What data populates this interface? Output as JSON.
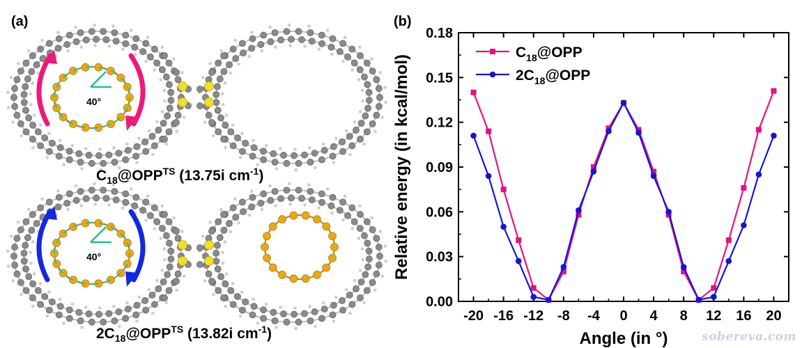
{
  "panel_a": {
    "letter": "(a)",
    "angle_label": "40°",
    "caption_top": {
      "prefix": "C",
      "sub": "18",
      "mid": "@OPP",
      "sup": "TS",
      "suffix": " (13.75i cm",
      "suffix_sup": "-1",
      "close": ")"
    },
    "caption_bottom": {
      "prefix": "2C",
      "sub": "18",
      "mid": "@OPP",
      "sup": "TS",
      "suffix": " (13.82i cm",
      "suffix_sup": "-1",
      "close": ")"
    },
    "colors": {
      "carbon_ring": "#e8a818",
      "carbon_ring_dark": "#b97d10",
      "opp_atom": "#8a8a8a",
      "sulfur": "#f2e028",
      "arrow_top": "#f0187a",
      "arrow_bottom": "#1428e0",
      "vector": "#1fbf99"
    }
  },
  "panel_b": {
    "letter": "(b)",
    "watermark": "sobereva.com"
  },
  "chart_data": {
    "type": "line",
    "xlabel": "Angle (in °)",
    "ylabel": "Relative energy (in kcal/mol)",
    "xlim": [
      -22,
      22
    ],
    "ylim": [
      0,
      0.18
    ],
    "xticks": [
      -20,
      -16,
      -12,
      -8,
      -4,
      0,
      4,
      8,
      12,
      16,
      20
    ],
    "yticks": [
      0.0,
      0.03,
      0.06,
      0.09,
      0.12,
      0.15,
      0.18
    ],
    "ytick_labels": [
      "0.00",
      "0.03",
      "0.06",
      "0.09",
      "0.12",
      "0.15",
      "0.18"
    ],
    "legend_position": "top-left",
    "series": [
      {
        "name_main": "C",
        "name_sub": "18",
        "name_rest": "@OPP",
        "color": "#e8107f",
        "marker": "square",
        "x": [
          -20,
          -18,
          -16,
          -14,
          -12,
          -10,
          -8,
          -6,
          -4,
          -2,
          0,
          2,
          4,
          6,
          8,
          10,
          12,
          14,
          16,
          18,
          20
        ],
        "y": [
          0.14,
          0.114,
          0.075,
          0.041,
          0.009,
          0.001,
          0.02,
          0.058,
          0.09,
          0.116,
          0.133,
          0.115,
          0.087,
          0.058,
          0.02,
          0.001,
          0.009,
          0.041,
          0.076,
          0.115,
          0.141
        ]
      },
      {
        "name_main": "2C",
        "name_sub": "18",
        "name_rest": "@OPP",
        "color": "#1414d8",
        "marker": "circle",
        "x": [
          -20,
          -18,
          -16,
          -14,
          -12,
          -10,
          -8,
          -6,
          -4,
          -2,
          0,
          2,
          4,
          6,
          8,
          10,
          12,
          14,
          16,
          18,
          20
        ],
        "y": [
          0.111,
          0.084,
          0.05,
          0.027,
          0.003,
          0.001,
          0.023,
          0.061,
          0.087,
          0.114,
          0.133,
          0.113,
          0.084,
          0.06,
          0.023,
          0.001,
          0.003,
          0.027,
          0.051,
          0.085,
          0.111
        ]
      }
    ]
  }
}
